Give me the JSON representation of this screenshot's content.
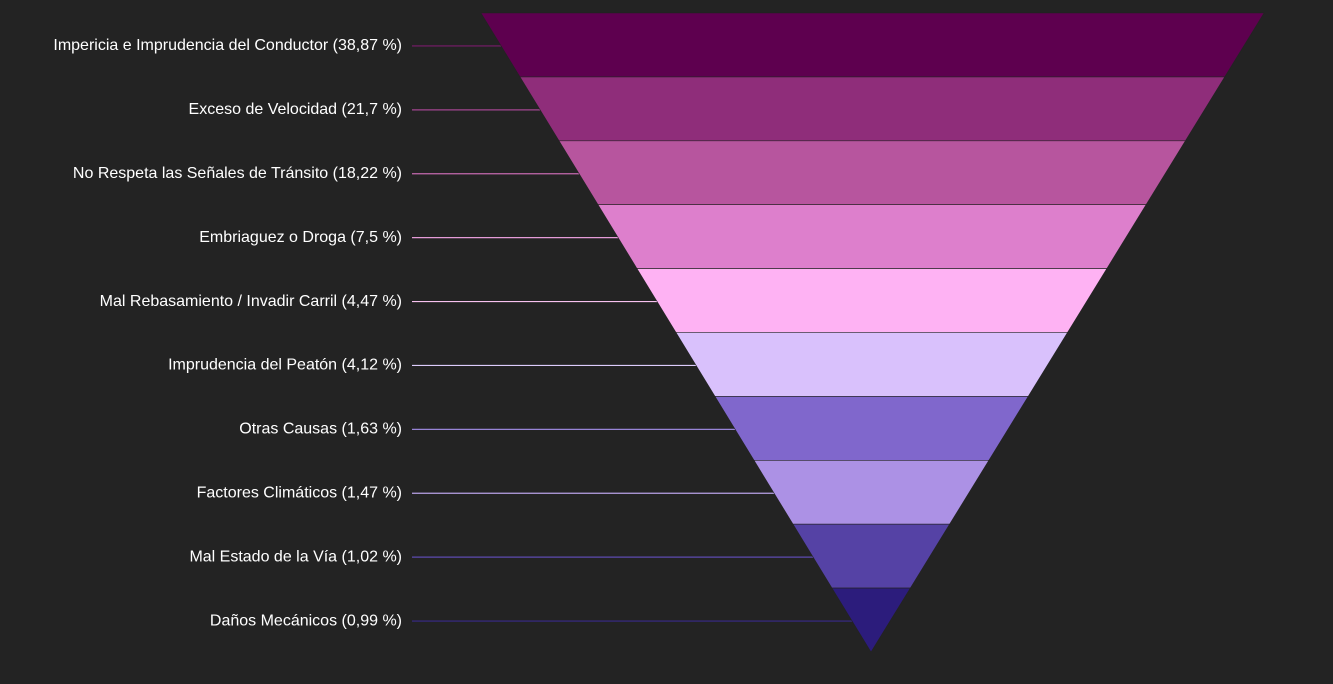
{
  "chart_data": {
    "type": "funnel",
    "title": "",
    "grid": false,
    "legend": "none",
    "segments": [
      {
        "label": "Impericia e Imprudencia del Conductor (38,87 %)",
        "name": "Impericia e Imprudencia del Conductor",
        "value": 38.87,
        "color": "#5e004f",
        "connector_color": "#7a1b6b"
      },
      {
        "label": "Exceso de Velocidad (21,7 %)",
        "name": "Exceso de Velocidad",
        "value": 21.7,
        "color": "#8f2d7a",
        "connector_color": "#a14590"
      },
      {
        "label": "No Respeta las Señales de Tránsito (18,22 %)",
        "name": "No Respeta las Señales de Tránsito",
        "value": 18.22,
        "color": "#b7559e",
        "connector_color": "#c46aaf"
      },
      {
        "label": "Embriaguez o Droga (7,5 %)",
        "name": "Embriaguez o Droga",
        "value": 7.5,
        "color": "#dd7fcc",
        "connector_color": "#e59bd8"
      },
      {
        "label": "Mal Rebasamiento / Invadir Carril (4,47 %)",
        "name": "Mal Rebasamiento / Invadir Carril",
        "value": 4.47,
        "color": "#feb2f3",
        "connector_color": "#f8c2f0"
      },
      {
        "label": "Imprudencia del Peatón (4,12 %)",
        "name": "Imprudencia del Peatón",
        "value": 4.12,
        "color": "#d9c1fc",
        "connector_color": "#dcccfb"
      },
      {
        "label": "Otras Causas (1,63 %)",
        "name": "Otras Causas",
        "value": 1.63,
        "color": "#8067cc",
        "connector_color": "#9784d6"
      },
      {
        "label": "Factores Climáticos (1,47 %)",
        "name": "Factores Climáticos",
        "value": 1.47,
        "color": "#ac91e5",
        "connector_color": "#b9a3e8"
      },
      {
        "label": "Mal Estado de la Vía (1,02 %)",
        "name": "Mal Estado de la Vía",
        "value": 1.02,
        "color": "#5542a5",
        "connector_color": "#5d4bb0"
      },
      {
        "label": "Daños Mecánicos (0,99 %)",
        "name": "Daños Mecánicos",
        "value": 0.99,
        "color": "#2c1c7c",
        "connector_color": "#382a8a"
      }
    ]
  }
}
